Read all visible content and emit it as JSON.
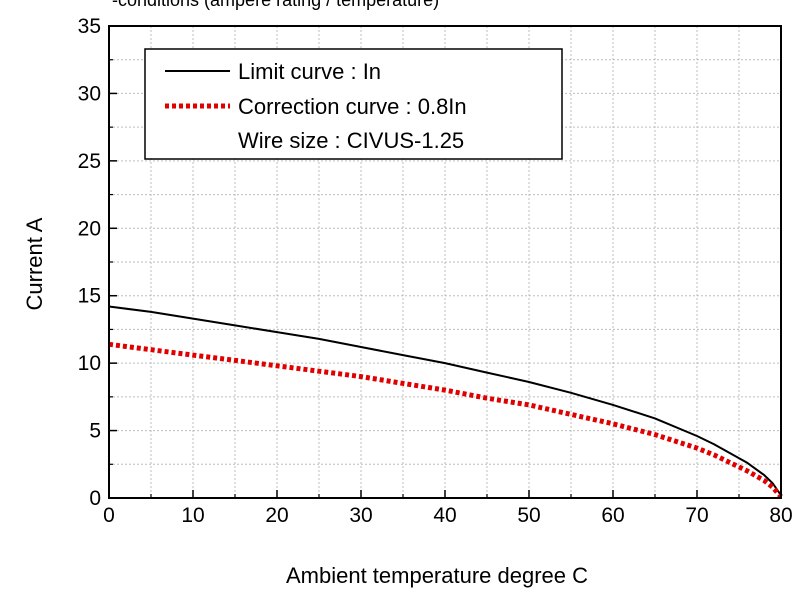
{
  "chart_data": {
    "type": "line",
    "top_caption_partial": "-conditions (ampere rating / temperature)",
    "xlabel": "Ambient temperature  degree C",
    "ylabel": "Current  A",
    "xlim": [
      0,
      80
    ],
    "ylim": [
      0,
      35
    ],
    "x_ticks": [
      0,
      10,
      20,
      30,
      40,
      50,
      60,
      70,
      80
    ],
    "y_ticks": [
      0,
      5,
      10,
      15,
      20,
      25,
      30,
      35
    ],
    "grid": true,
    "legend_position": "top-left",
    "legend_note": "Wire size : CIVUS-1.25",
    "series": [
      {
        "name": "Limit curve : In",
        "style": "solid",
        "color": "#000000",
        "x": [
          0,
          5,
          10,
          15,
          20,
          25,
          30,
          35,
          40,
          45,
          50,
          55,
          60,
          65,
          70,
          72,
          74,
          76,
          78,
          79,
          80
        ],
        "y": [
          14.2,
          13.8,
          13.3,
          12.8,
          12.3,
          11.8,
          11.2,
          10.6,
          10.0,
          9.3,
          8.6,
          7.8,
          6.9,
          5.9,
          4.6,
          4.0,
          3.3,
          2.6,
          1.7,
          1.1,
          0.2
        ]
      },
      {
        "name": "Correction curve : 0.8In",
        "style": "dotted",
        "color": "#e00000",
        "x": [
          0,
          5,
          10,
          15,
          20,
          25,
          30,
          35,
          40,
          45,
          50,
          55,
          60,
          65,
          70,
          72,
          74,
          76,
          78,
          79,
          80
        ],
        "y": [
          11.4,
          11.0,
          10.6,
          10.2,
          9.8,
          9.4,
          9.0,
          8.5,
          8.0,
          7.4,
          6.9,
          6.2,
          5.5,
          4.7,
          3.7,
          3.2,
          2.6,
          2.0,
          1.3,
          0.8,
          0.1
        ]
      }
    ]
  }
}
